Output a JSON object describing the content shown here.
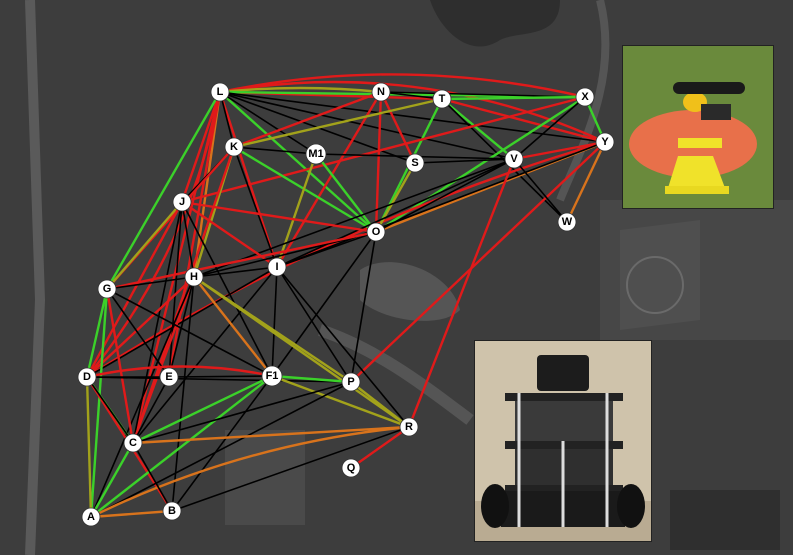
{
  "nodes": [
    {
      "id": "L",
      "label": "L"
    },
    {
      "id": "N",
      "label": "N"
    },
    {
      "id": "T",
      "label": "T"
    },
    {
      "id": "X",
      "label": "X"
    },
    {
      "id": "K",
      "label": "K"
    },
    {
      "id": "M1",
      "label": "M1"
    },
    {
      "id": "S",
      "label": "S"
    },
    {
      "id": "V",
      "label": "V"
    },
    {
      "id": "Y",
      "label": "Y"
    },
    {
      "id": "J",
      "label": "J"
    },
    {
      "id": "O",
      "label": "O"
    },
    {
      "id": "W",
      "label": "W"
    },
    {
      "id": "I",
      "label": "I"
    },
    {
      "id": "H",
      "label": "H"
    },
    {
      "id": "G",
      "label": "G"
    },
    {
      "id": "D",
      "label": "D"
    },
    {
      "id": "E",
      "label": "E"
    },
    {
      "id": "F1",
      "label": "F1"
    },
    {
      "id": "P",
      "label": "P"
    },
    {
      "id": "R",
      "label": "R"
    },
    {
      "id": "C",
      "label": "C"
    },
    {
      "id": "Q",
      "label": "Q"
    },
    {
      "id": "A",
      "label": "A"
    },
    {
      "id": "B",
      "label": "B"
    }
  ],
  "edge_colors": {
    "black": "#000000",
    "red": "#e01a1a",
    "green": "#3bd12a",
    "orange": "#d8731c",
    "olive": "#a2a21b"
  },
  "photos": {
    "top": {
      "subject": "traffic cone beacon"
    },
    "bottom": {
      "subject": "mobile robot"
    }
  }
}
